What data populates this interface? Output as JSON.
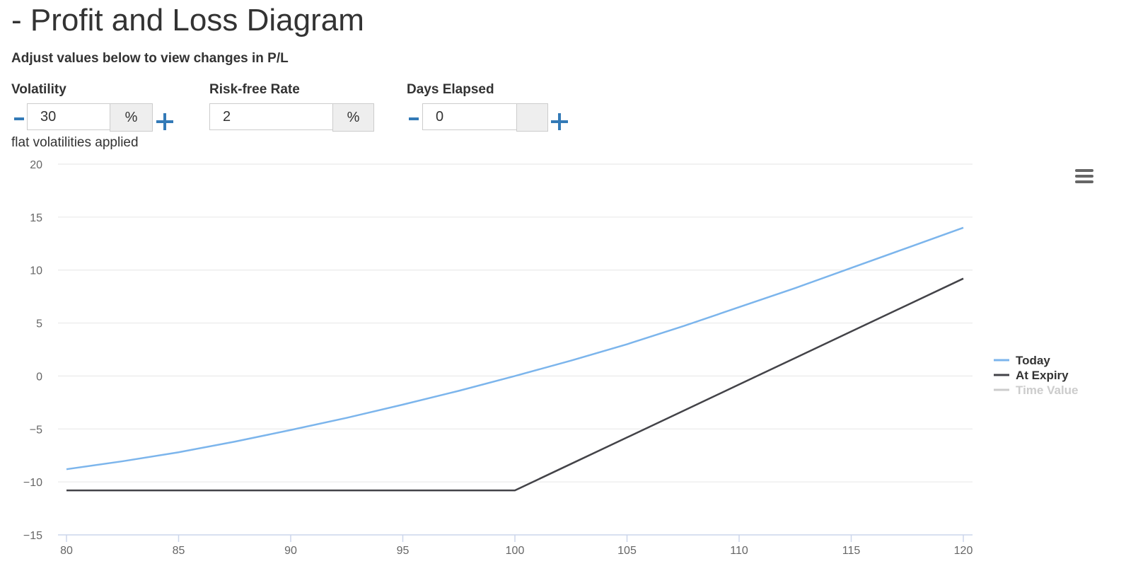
{
  "header": {
    "title": "- Profit and Loss Diagram",
    "subtitle": "Adjust values below to view changes in P/L"
  },
  "controls": [
    {
      "label": "Volatility",
      "value": "30",
      "unit": "%",
      "note": "flat volatilities applied"
    },
    {
      "label": "Risk-free Rate",
      "value": "2",
      "unit": "%"
    },
    {
      "label": "Days Elapsed",
      "value": "0"
    }
  ],
  "chart_data": {
    "type": "line",
    "x": [
      80,
      82.5,
      85,
      87.5,
      90,
      92.5,
      95,
      97.5,
      100,
      102.5,
      105,
      107.5,
      110,
      112.5,
      115,
      117.5,
      120
    ],
    "series": [
      {
        "name": "Today",
        "color": "#7cb5ec",
        "values": [
          -8.8,
          -8.05,
          -7.2,
          -6.2,
          -5.1,
          -3.95,
          -2.7,
          -1.4,
          0,
          1.45,
          3.0,
          4.7,
          6.5,
          8.3,
          10.2,
          12.1,
          14.0
        ]
      },
      {
        "name": "At Expiry",
        "color": "#434348",
        "values": [
          -10.8,
          -10.8,
          -10.8,
          -10.8,
          -10.8,
          -10.8,
          -10.8,
          -10.8,
          -10.8,
          -8.3,
          -5.8,
          -3.3,
          -0.8,
          1.7,
          4.2,
          6.7,
          9.2
        ]
      },
      {
        "name": "Time Value",
        "color": "#cccccc",
        "visible": false
      }
    ],
    "xlim": [
      80,
      120
    ],
    "xticks": [
      80,
      85,
      90,
      95,
      100,
      105,
      110,
      115,
      120
    ],
    "ylim": [
      -15,
      20
    ],
    "yticks": [
      {
        "value": -15,
        "label": "−15"
      },
      {
        "value": -10,
        "label": "−10"
      },
      {
        "value": -5,
        "label": "−5"
      },
      0,
      5,
      10,
      15,
      20
    ],
    "grid": true,
    "legend": "right"
  }
}
